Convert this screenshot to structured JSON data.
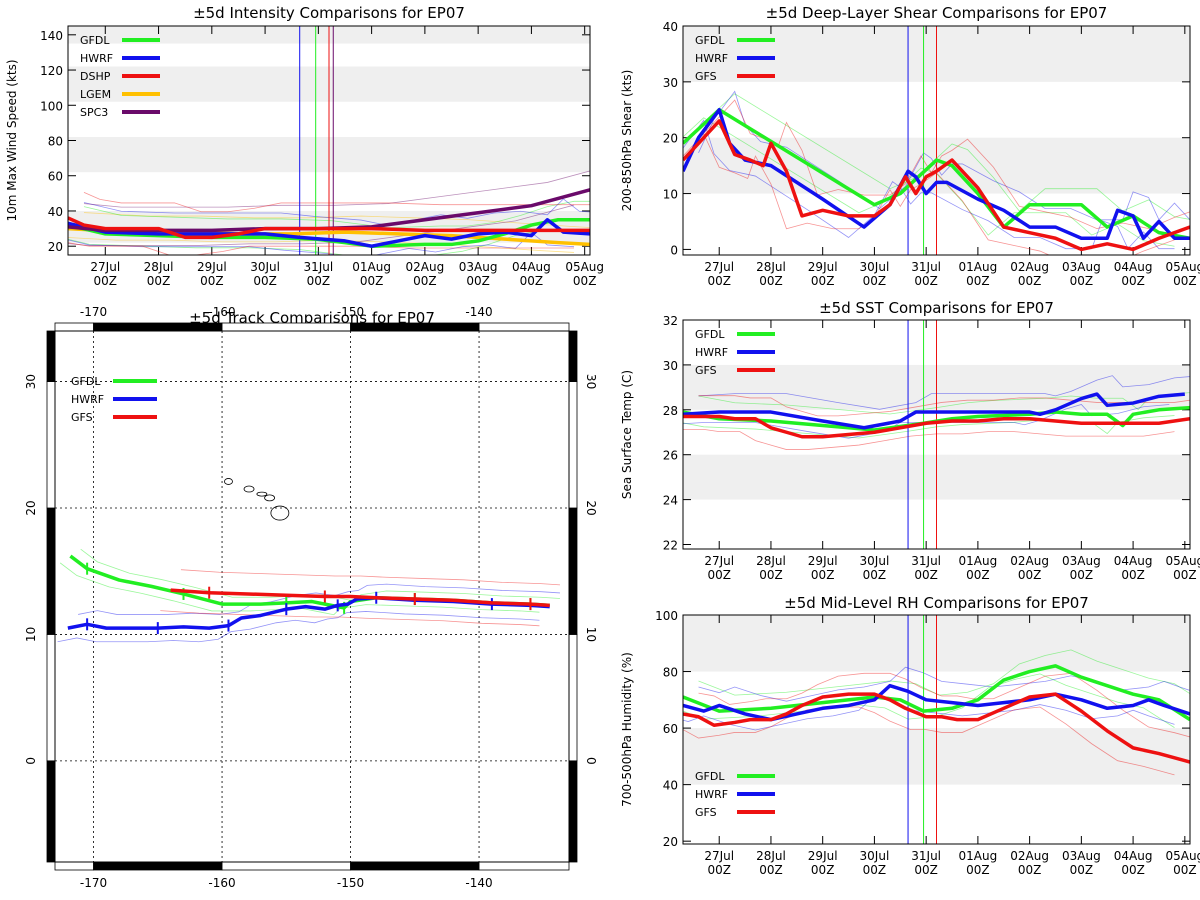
{
  "colors": {
    "GFDL": "#22ee22",
    "HWRF": "#1111ee",
    "DSHP": "#ee1111",
    "GFS": "#ee1111",
    "LGEM": "#ffc000",
    "SPC3": "#6a0a6a",
    "band": "#efefef"
  },
  "date_ticks": {
    "days": [
      "27Jul",
      "28Jul",
      "29Jul",
      "30Jul",
      "31Jul",
      "01Aug",
      "02Aug",
      "03Aug",
      "04Aug",
      "05Aug"
    ],
    "hour": "00Z"
  },
  "chart_data": [
    {
      "id": "intensity",
      "type": "line",
      "title": "±5d Intensity Comparisons for EP07",
      "ylabel": "10m Max Wind Speed (kts)",
      "xlim": [
        -0.7,
        9.1
      ],
      "ylim": [
        15,
        145
      ],
      "yticks": [
        20,
        40,
        60,
        80,
        100,
        120,
        140
      ],
      "bands": [
        [
          22,
          40
        ],
        [
          62,
          82
        ],
        [
          102,
          122
        ],
        [
          135,
          145
        ]
      ],
      "vlines": [
        {
          "x": 3.65,
          "model": "HWRF"
        },
        {
          "x": 3.95,
          "model": "GFDL"
        },
        {
          "x": 4.2,
          "model": "DSHP"
        },
        {
          "x": 4.28,
          "model": "SPC3"
        }
      ],
      "legend": [
        "GFDL",
        "HWRF",
        "DSHP",
        "LGEM",
        "SPC3"
      ],
      "series": [
        {
          "name": "LGEM",
          "x": [
            -0.7,
            0.5,
            1.5,
            2.5,
            3.5,
            4.5,
            5.5,
            6.5,
            7.5,
            8.5,
            9.1
          ],
          "y": [
            30,
            28,
            28,
            27,
            27,
            28,
            27,
            26,
            24,
            22,
            21
          ]
        },
        {
          "name": "GFDL",
          "x": [
            -0.7,
            0,
            1,
            2,
            3,
            3.95,
            4.5,
            5,
            6,
            6.5,
            7,
            7.5,
            8,
            8.5,
            9.1
          ],
          "y": [
            32,
            27,
            26,
            25,
            25,
            24,
            22,
            20,
            21,
            21,
            23,
            27,
            32,
            35,
            35
          ]
        },
        {
          "name": "HWRF",
          "x": [
            -0.7,
            0,
            1,
            2,
            3,
            3.65,
            4.5,
            5,
            5.5,
            6,
            6.5,
            7,
            7.5,
            8,
            8.3,
            8.6,
            9.1
          ],
          "y": [
            33,
            28,
            27,
            27,
            27,
            25,
            23,
            20,
            23,
            26,
            24,
            27,
            28,
            26,
            35,
            28,
            27
          ]
        },
        {
          "name": "SPC3",
          "x": [
            -0.7,
            0,
            1,
            2,
            3,
            4,
            5,
            6,
            7,
            8,
            9.1
          ],
          "y": [
            31,
            29,
            29,
            29,
            30,
            30,
            31,
            35,
            39,
            43,
            52
          ]
        },
        {
          "name": "DSHP",
          "x": [
            -0.7,
            -0.4,
            0,
            0.6,
            1,
            1.5,
            2,
            2.5,
            3,
            4,
            5,
            6,
            7,
            8,
            9.1
          ],
          "y": [
            36,
            32,
            30,
            30,
            30,
            25,
            25,
            27,
            30,
            30,
            30,
            29,
            29,
            29,
            29
          ]
        }
      ]
    },
    {
      "id": "shear",
      "type": "line",
      "title": "±5d Deep-Layer Shear Comparisons for EP07",
      "ylabel": "200-850hPa Shear (kts)",
      "xlim": [
        -0.7,
        9.1
      ],
      "ylim": [
        -1,
        40
      ],
      "yticks": [
        0,
        10,
        20,
        30,
        40
      ],
      "bands": [
        [
          10,
          20
        ],
        [
          30,
          40
        ]
      ],
      "vlines": [
        {
          "x": 3.65,
          "model": "HWRF"
        },
        {
          "x": 3.95,
          "model": "GFDL"
        },
        {
          "x": 4.2,
          "model": "GFS"
        }
      ],
      "legend": [
        "GFDL",
        "HWRF",
        "GFS"
      ],
      "series": [
        {
          "name": "GFDL",
          "x": [
            -0.7,
            0,
            3,
            3.5,
            4.2,
            4.5,
            5,
            5.5,
            6,
            6.5,
            7,
            7.5,
            8,
            8.5,
            9.1
          ],
          "y": [
            19,
            25,
            8,
            10,
            16,
            15,
            10,
            4,
            8,
            8,
            8,
            4,
            6,
            3,
            2
          ]
        },
        {
          "name": "HWRF",
          "x": [
            -0.7,
            -0.4,
            0,
            0.2,
            0.5,
            1,
            2,
            2.8,
            3.3,
            3.65,
            3.8,
            4,
            4.2,
            4.4,
            5,
            5.5,
            6,
            6.5,
            7,
            7.5,
            7.7,
            8,
            8.2,
            8.5,
            8.8,
            9.1
          ],
          "y": [
            14,
            20,
            25,
            19,
            16,
            15,
            9,
            4,
            8,
            14,
            13,
            10,
            12,
            12,
            9,
            7,
            4,
            4,
            2,
            2,
            7,
            6,
            2,
            5,
            2,
            2
          ]
        },
        {
          "name": "GFS",
          "x": [
            -0.7,
            -0.4,
            0,
            0.3,
            0.6,
            0.85,
            1,
            1.3,
            1.6,
            2,
            2.5,
            3,
            3.3,
            3.6,
            3.8,
            4,
            4.2,
            4.5,
            5,
            5.5,
            6,
            6.5,
            7,
            7.5,
            8,
            8.5,
            9.1
          ],
          "y": [
            16,
            19,
            23,
            17,
            16,
            15,
            19,
            14,
            6,
            7,
            6,
            6,
            8,
            13,
            10,
            13,
            14,
            16,
            11,
            4,
            3,
            2,
            0,
            1,
            0,
            2,
            4
          ]
        }
      ]
    },
    {
      "id": "sst",
      "type": "line",
      "title": "±5d SST Comparisons for EP07",
      "ylabel": "Sea Surface Temp (C)",
      "xlim": [
        -0.7,
        9.1
      ],
      "ylim": [
        21.8,
        32
      ],
      "yticks": [
        22,
        24,
        26,
        28,
        30,
        32
      ],
      "bands": [
        [
          24,
          26
        ],
        [
          28,
          30
        ]
      ],
      "vlines": [
        {
          "x": 3.65,
          "model": "HWRF"
        },
        {
          "x": 3.95,
          "model": "GFDL"
        },
        {
          "x": 4.2,
          "model": "GFS"
        }
      ],
      "legend": [
        "GFDL",
        "HWRF",
        "GFS"
      ],
      "series": [
        {
          "name": "GFDL",
          "x": [
            -0.7,
            0,
            1,
            2,
            3,
            3.95,
            4.5,
            5,
            6,
            6.5,
            7,
            7.5,
            7.8,
            8,
            8.5,
            9.1
          ],
          "y": [
            27.9,
            27.6,
            27.5,
            27.3,
            27.1,
            27.4,
            27.6,
            27.7,
            27.8,
            27.9,
            27.8,
            27.8,
            27.3,
            27.8,
            28,
            28.1
          ]
        },
        {
          "name": "HWRF",
          "x": [
            -0.7,
            0,
            1,
            2,
            2.8,
            3.5,
            3.8,
            4.5,
            5,
            6,
            6.2,
            6.5,
            7,
            7.3,
            7.5,
            8,
            8.5,
            9
          ],
          "y": [
            27.8,
            27.9,
            27.9,
            27.5,
            27.2,
            27.5,
            27.9,
            27.9,
            27.9,
            27.9,
            27.8,
            28,
            28.5,
            28.7,
            28.2,
            28.3,
            28.6,
            28.7
          ]
        },
        {
          "name": "GFS",
          "x": [
            -0.7,
            0,
            0.3,
            0.7,
            1,
            1.3,
            1.6,
            2,
            2.5,
            3,
            3.5,
            4,
            4.5,
            5,
            5.5,
            6,
            6.5,
            7,
            7.5,
            8,
            8.5,
            9.1
          ],
          "y": [
            27.7,
            27.7,
            27.6,
            27.6,
            27.2,
            27,
            26.8,
            26.8,
            26.9,
            27,
            27.2,
            27.4,
            27.5,
            27.5,
            27.6,
            27.6,
            27.5,
            27.4,
            27.4,
            27.4,
            27.4,
            27.6
          ]
        }
      ]
    },
    {
      "id": "rh",
      "type": "line",
      "title": "±5d Mid-Level RH Comparisons for EP07",
      "ylabel": "700-500hPa Humidity (%)",
      "xlim": [
        -0.7,
        9.1
      ],
      "ylim": [
        19,
        100
      ],
      "yticks": [
        20,
        40,
        60,
        80,
        100
      ],
      "bands": [
        [
          40,
          60
        ],
        [
          80,
          100
        ]
      ],
      "vlines": [
        {
          "x": 3.65,
          "model": "HWRF"
        },
        {
          "x": 3.95,
          "model": "GFDL"
        },
        {
          "x": 4.2,
          "model": "GFS"
        }
      ],
      "legend": [
        "GFDL",
        "HWRF",
        "GFS"
      ],
      "series": [
        {
          "name": "GFDL",
          "x": [
            -0.7,
            0,
            1,
            2,
            3,
            3.5,
            3.95,
            4.5,
            5,
            5.5,
            6,
            6.5,
            7,
            7.5,
            8,
            8.5,
            9.1
          ],
          "y": [
            71,
            66,
            67,
            69,
            71,
            70,
            66,
            67,
            70,
            77,
            80,
            82,
            78,
            75,
            72,
            70,
            63
          ]
        },
        {
          "name": "HWRF",
          "x": [
            -0.7,
            -0.3,
            0,
            0.5,
            1,
            1.5,
            2,
            2.5,
            3,
            3.3,
            3.65,
            4,
            4.5,
            5,
            5.5,
            6,
            6.5,
            7,
            7.5,
            8,
            8.3,
            8.6,
            9.1
          ],
          "y": [
            68,
            66,
            68,
            65,
            63,
            65,
            67,
            68,
            70,
            75,
            73,
            70,
            69,
            68,
            69,
            70,
            72,
            70,
            67,
            68,
            70,
            68,
            65
          ]
        },
        {
          "name": "GFS",
          "x": [
            -0.7,
            -0.4,
            -0.1,
            0.3,
            0.6,
            1,
            1.3,
            1.6,
            2,
            2.5,
            3,
            3.3,
            3.6,
            4,
            4.3,
            4.6,
            5,
            5.5,
            6,
            6.5,
            7,
            7.5,
            8,
            8.5,
            9.1
          ],
          "y": [
            65,
            64,
            61,
            62,
            63,
            63,
            65,
            68,
            71,
            72,
            72,
            70,
            67,
            64,
            64,
            63,
            63,
            67,
            71,
            72,
            66,
            59,
            53,
            51,
            48
          ]
        }
      ]
    },
    {
      "id": "track",
      "type": "scatter",
      "title": "±5d Track Comparisons for EP07",
      "xlim": [
        -173,
        -133
      ],
      "ylim": [
        -8,
        34
      ],
      "lon_ticks": [
        -170,
        -160,
        -150,
        -140
      ],
      "lat_ticks": [
        0,
        10,
        20,
        30
      ],
      "legend": [
        "GFDL",
        "HWRF",
        "GFS"
      ],
      "series": [
        {
          "name": "GFDL",
          "lon": [
            -171.8,
            -170.5,
            -168,
            -165.5,
            -163,
            -160,
            -157,
            -155,
            -153,
            -151.5,
            -150.5,
            -150,
            -148,
            -145,
            -142,
            -139,
            -136,
            -134.5
          ],
          "lat": [
            16.2,
            15.2,
            14.3,
            13.8,
            13.2,
            12.4,
            12.4,
            12.5,
            12.6,
            12.3,
            12.1,
            12.6,
            12.9,
            12.8,
            12.7,
            12.5,
            12.4,
            12.3
          ]
        },
        {
          "name": "HWRF",
          "lon": [
            -172,
            -170.5,
            -169,
            -167,
            -165,
            -163,
            -161,
            -159.5,
            -158.5,
            -157,
            -155,
            -153.5,
            -152,
            -151,
            -150.2,
            -149.5,
            -148,
            -145,
            -142,
            -139,
            -136,
            -134.5
          ],
          "lat": [
            10.5,
            10.8,
            10.5,
            10.5,
            10.5,
            10.6,
            10.5,
            10.7,
            11.3,
            11.5,
            12.0,
            12.2,
            12.0,
            12.3,
            12.4,
            12.8,
            12.9,
            12.7,
            12.6,
            12.4,
            12.3,
            12.2
          ]
        },
        {
          "name": "GFS",
          "lon": [
            -164,
            -161,
            -158,
            -155,
            -152,
            -150,
            -148,
            -145,
            -142,
            -139,
            -136,
            -134.5
          ],
          "lat": [
            13.5,
            13.3,
            13.2,
            13.1,
            13.0,
            13.0,
            12.9,
            12.8,
            12.7,
            12.5,
            12.4,
            12.3
          ]
        }
      ]
    }
  ]
}
